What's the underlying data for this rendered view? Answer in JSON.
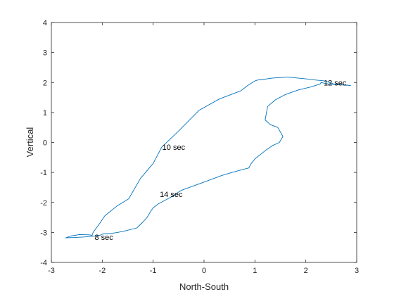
{
  "colors": {
    "series": "#0072BD",
    "axis": "#262626",
    "background": "#ffffff"
  },
  "chart_data": {
    "type": "line",
    "title": "",
    "xlabel": "North-South",
    "ylabel": "Vertical",
    "xlim": [
      -3,
      3
    ],
    "ylim": [
      -4,
      4
    ],
    "xticks": [
      -3,
      -2,
      -1,
      0,
      1,
      2,
      3
    ],
    "yticks": [
      -4,
      -3,
      -2,
      -1,
      0,
      1,
      2,
      3,
      4
    ],
    "grid": false,
    "legend": "none",
    "series": [
      {
        "x": [
          -2.72,
          -2.62,
          -2.45,
          -2.25,
          -2.2,
          -2.18,
          -2.05,
          -1.95,
          -1.72,
          -1.48,
          -1.25,
          -1.0,
          -0.83,
          -0.5,
          -0.1,
          0.3,
          0.72,
          0.86,
          0.95,
          1.0,
          1.05,
          1.15,
          1.35,
          1.65,
          2.0,
          2.2,
          2.38,
          2.55,
          2.88,
          2.45,
          2.3,
          2.28,
          2.1,
          1.85,
          1.6,
          1.4,
          1.25,
          1.2,
          1.3,
          1.45,
          1.55,
          1.48,
          1.35,
          1.22,
          1.0,
          0.92,
          0.88,
          0.55,
          0.35,
          0.0,
          -0.45,
          -0.65,
          -0.9,
          -1.0,
          -1.05,
          -1.12,
          -1.2,
          -1.32,
          -1.55,
          -1.7,
          -1.82,
          -1.98,
          -2.05,
          -2.15,
          -2.35,
          -2.55,
          -2.72
        ],
        "y": [
          -3.18,
          -3.12,
          -3.07,
          -3.08,
          -3.1,
          -3.0,
          -2.7,
          -2.45,
          -2.13,
          -1.88,
          -1.2,
          -0.7,
          -0.15,
          0.38,
          1.07,
          1.45,
          1.72,
          1.9,
          2.0,
          2.05,
          2.08,
          2.1,
          2.15,
          2.18,
          2.12,
          2.08,
          2.05,
          1.95,
          1.9,
          1.95,
          2.0,
          1.95,
          1.85,
          1.75,
          1.6,
          1.42,
          1.2,
          0.75,
          0.6,
          0.5,
          0.2,
          0.0,
          -0.1,
          -0.25,
          -0.55,
          -0.72,
          -0.85,
          -1.0,
          -1.1,
          -1.32,
          -1.6,
          -1.82,
          -2.05,
          -2.18,
          -2.3,
          -2.5,
          -2.65,
          -2.85,
          -2.95,
          -3.0,
          -3.03,
          -3.05,
          -3.1,
          -3.12,
          -3.15,
          -3.17,
          -3.18
        ]
      }
    ],
    "annotations": [
      {
        "text": "8 sec",
        "x": -2.15,
        "y": -3.15
      },
      {
        "text": "10 sec",
        "x": -0.82,
        "y": -0.15
      },
      {
        "text": "12 sec",
        "x": 2.35,
        "y": 2.0
      },
      {
        "text": "14 sec",
        "x": -0.87,
        "y": -1.72
      }
    ]
  }
}
